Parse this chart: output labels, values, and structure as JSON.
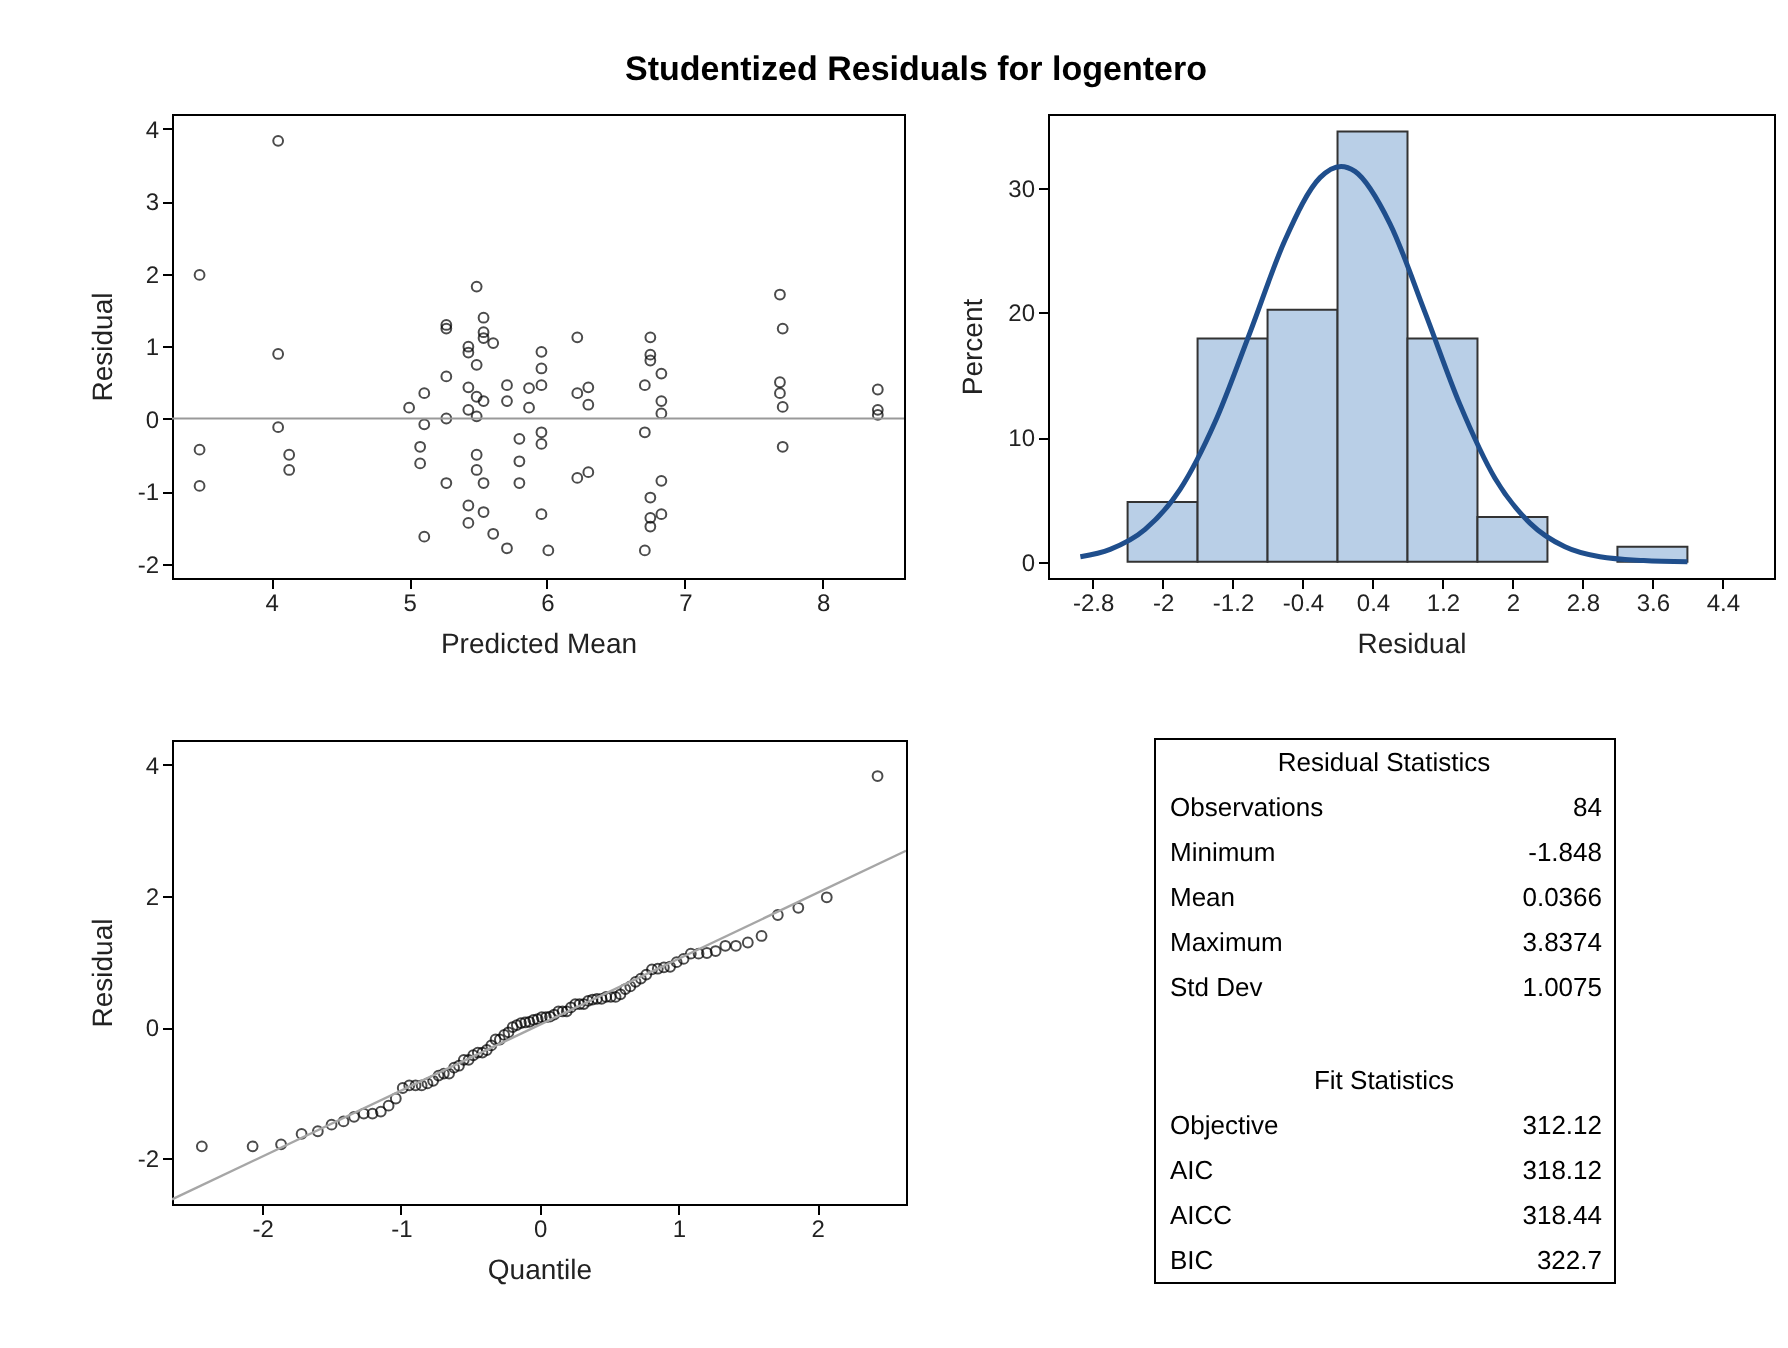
{
  "chart_data": [
    {
      "type": "scatter",
      "title": "Studentized Residuals for logentero",
      "xlabel": "Predicted Mean",
      "ylabel": "Residual",
      "color": "#000000",
      "marker": "circle",
      "xlim": [
        3.28,
        8.59
      ],
      "ylim": [
        -2.2,
        4.2
      ],
      "xticks": [
        4,
        5,
        6,
        7,
        8
      ],
      "yticks": [
        -2,
        -1,
        0,
        1,
        2,
        3,
        4
      ],
      "x": [
        3.48,
        3.48,
        3.48,
        4.05,
        4.05,
        4.05,
        4.13,
        4.13,
        5.0,
        5.11,
        5.11,
        5.08,
        5.08,
        5.11,
        5.27,
        5.27,
        5.27,
        5.27,
        5.27,
        5.43,
        5.43,
        5.43,
        5.43,
        5.43,
        5.43,
        5.49,
        5.49,
        5.49,
        5.49,
        5.49,
        5.49,
        5.54,
        5.54,
        5.54,
        5.54,
        5.54,
        5.54,
        5.61,
        5.61,
        5.71,
        5.71,
        5.71,
        5.8,
        5.8,
        5.8,
        5.87,
        5.87,
        5.96,
        5.96,
        5.96,
        5.96,
        5.96,
        5.96,
        6.01,
        6.22,
        6.22,
        6.22,
        6.3,
        6.3,
        6.3,
        6.71,
        6.71,
        6.71,
        6.75,
        6.75,
        6.75,
        6.75,
        6.75,
        6.75,
        6.83,
        6.83,
        6.83,
        6.83,
        6.83,
        7.69,
        7.71,
        7.69,
        7.69,
        7.71,
        7.71,
        8.4,
        8.4,
        8.4
      ],
      "values": [
        1.98,
        -0.43,
        -0.93,
        3.83,
        0.89,
        -0.12,
        -0.5,
        -0.71,
        0.15,
        0.35,
        -0.08,
        -0.39,
        -0.62,
        -1.63,
        1.29,
        1.24,
        0.58,
        0.0,
        -0.89,
        0.99,
        0.91,
        0.43,
        0.12,
        -1.2,
        -1.44,
        1.82,
        0.74,
        0.3,
        0.03,
        -0.5,
        -0.71,
        1.39,
        1.19,
        1.11,
        0.24,
        -0.89,
        -1.29,
        1.04,
        -1.59,
        0.46,
        0.24,
        -1.79,
        -0.28,
        -0.59,
        -0.89,
        0.42,
        0.15,
        0.92,
        0.69,
        0.46,
        -0.19,
        -0.35,
        -1.32,
        -1.82,
        1.12,
        0.35,
        -0.82,
        0.43,
        0.19,
        -0.74,
        0.46,
        -0.19,
        -1.82,
        1.12,
        0.88,
        0.8,
        -1.09,
        -1.37,
        -1.49,
        0.62,
        0.24,
        0.07,
        -0.86,
        -1.32,
        1.71,
        1.24,
        0.5,
        0.35,
        0.16,
        -0.39,
        0.4,
        0.12,
        0.05
      ],
      "ref_lines": [
        {
          "axis": "y",
          "value": 0,
          "color": "#999999"
        }
      ]
    },
    {
      "type": "histogram",
      "xlabel": "Residual",
      "ylabel": "Percent",
      "color": "#b9cfe7",
      "xlim": [
        -3.31,
        4.99
      ],
      "ylim": [
        -1.3,
        35.9
      ],
      "xticks": [
        -2.8,
        -2,
        -1.2,
        -0.4,
        0.4,
        1.2,
        2,
        2.8,
        3.6,
        4.4
      ],
      "yticks": [
        0,
        10,
        20,
        30
      ],
      "bins": [
        -2.4,
        -1.6,
        -0.8,
        0,
        0.8,
        1.6,
        2.4,
        3.2,
        4.0
      ],
      "values": [
        4.8,
        17.9,
        20.2,
        34.5,
        17.9,
        3.6,
        0,
        1.2
      ],
      "series": [
        {
          "type": "line",
          "color": "#1f4e8c",
          "marker": "none",
          "x": [
            -2.94,
            -2.6,
            -2.2,
            -1.8,
            -1.4,
            -1.0,
            -0.6,
            -0.2,
            0.04,
            0.2,
            0.6,
            1.0,
            1.4,
            1.8,
            2.2,
            2.6,
            3.0,
            3.5,
            4.0
          ],
          "values": [
            0.4,
            1.0,
            2.6,
            5.8,
            11.2,
            18.4,
            25.8,
            30.8,
            31.7,
            31.3,
            27.1,
            20.0,
            12.6,
            6.7,
            3.1,
            1.2,
            0.4,
            0.1,
            0.0
          ]
        }
      ]
    },
    {
      "type": "scatter",
      "xlabel": "Quantile",
      "ylabel": "Residual",
      "color": "#000000",
      "marker": "circle",
      "xlim": [
        -2.65,
        2.64
      ],
      "ylim": [
        -2.7,
        4.38
      ],
      "xticks": [
        -2,
        -1,
        0,
        1,
        2
      ],
      "yticks": [
        -2,
        0,
        2,
        4
      ],
      "x": [
        -2.435,
        -2.069,
        -1.864,
        -1.716,
        -1.599,
        -1.5,
        -1.414,
        -1.338,
        -1.268,
        -1.205,
        -1.145,
        -1.089,
        -1.037,
        -0.987,
        -0.94,
        -0.895,
        -0.851,
        -0.809,
        -0.768,
        -0.729,
        -0.691,
        -0.653,
        -0.617,
        -0.582,
        -0.547,
        -0.512,
        -0.479,
        -0.446,
        -0.413,
        -0.381,
        -0.349,
        -0.318,
        -0.287,
        -0.256,
        -0.225,
        -0.195,
        -0.165,
        -0.135,
        -0.104,
        -0.074,
        -0.045,
        -0.015,
        0.015,
        0.045,
        0.074,
        0.104,
        0.135,
        0.165,
        0.195,
        0.225,
        0.256,
        0.287,
        0.318,
        0.349,
        0.381,
        0.413,
        0.446,
        0.479,
        0.512,
        0.547,
        0.582,
        0.617,
        0.653,
        0.691,
        0.729,
        0.768,
        0.809,
        0.851,
        0.895,
        0.94,
        0.987,
        1.037,
        1.089,
        1.145,
        1.205,
        1.268,
        1.338,
        1.414,
        1.5,
        1.599,
        1.716,
        1.864,
        2.069,
        2.435
      ],
      "values": [
        -1.82,
        -1.82,
        -1.79,
        -1.63,
        -1.59,
        -1.49,
        -1.44,
        -1.37,
        -1.32,
        -1.32,
        -1.29,
        -1.2,
        -1.09,
        -0.93,
        -0.89,
        -0.89,
        -0.89,
        -0.86,
        -0.82,
        -0.74,
        -0.71,
        -0.71,
        -0.62,
        -0.59,
        -0.5,
        -0.5,
        -0.43,
        -0.39,
        -0.39,
        -0.35,
        -0.28,
        -0.19,
        -0.19,
        -0.12,
        -0.08,
        0.0,
        0.03,
        0.06,
        0.07,
        0.08,
        0.11,
        0.12,
        0.15,
        0.15,
        0.16,
        0.19,
        0.24,
        0.24,
        0.24,
        0.3,
        0.35,
        0.35,
        0.35,
        0.4,
        0.42,
        0.43,
        0.43,
        0.46,
        0.46,
        0.46,
        0.5,
        0.58,
        0.62,
        0.69,
        0.74,
        0.8,
        0.88,
        0.89,
        0.91,
        0.92,
        0.99,
        1.04,
        1.12,
        1.12,
        1.13,
        1.16,
        1.24,
        1.24,
        1.29,
        1.39,
        1.71,
        1.82,
        1.98,
        3.83
      ],
      "series": [
        {
          "type": "line",
          "color": "#a6a6a6",
          "marker": "none",
          "x": [
            -2.65,
            2.64
          ],
          "values": [
            -2.63,
            2.69
          ]
        }
      ]
    },
    {
      "type": "other",
      "title": "Residual Statistics",
      "categories": [
        "Observations",
        "Minimum",
        "Mean",
        "Maximum",
        "Std Dev"
      ],
      "values": [
        84,
        -1.848,
        0.0366,
        3.8374,
        1.0075
      ],
      "data_labels": true
    },
    {
      "type": "other",
      "title": "Fit Statistics",
      "categories": [
        "Objective",
        "AIC",
        "AICC",
        "BIC"
      ],
      "values": [
        312.12,
        318.12,
        318.44,
        322.7
      ],
      "data_labels": true
    }
  ]
}
